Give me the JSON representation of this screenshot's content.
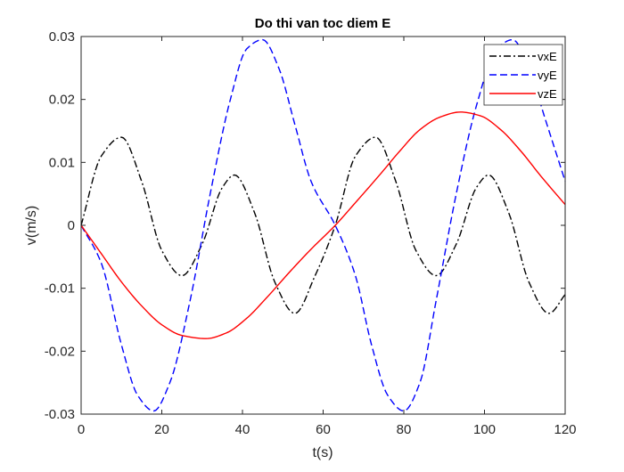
{
  "chart_data": {
    "type": "line",
    "title": "Do thi van toc diem E",
    "xlabel": "t(s)",
    "ylabel": "v(m/s)",
    "xlim": [
      0,
      120
    ],
    "ylim": [
      -0.03,
      0.03
    ],
    "xticks": [
      0,
      20,
      40,
      60,
      80,
      100,
      120
    ],
    "yticks": [
      -0.03,
      -0.02,
      -0.01,
      0,
      0.01,
      0.02,
      0.03
    ],
    "xtick_labels": [
      "0",
      "20",
      "40",
      "60",
      "80",
      "100",
      "120"
    ],
    "ytick_labels": [
      "-0.03",
      "-0.02",
      "-0.01",
      "0",
      "0.01",
      "0.02",
      "0.03"
    ],
    "grid": false,
    "legend_position": "top-right",
    "period": 63,
    "series": [
      {
        "name": "vxE",
        "color": "#000000",
        "style": "dash-dot",
        "x": [
          0,
          5,
          10,
          15,
          20,
          25,
          30,
          35,
          38,
          43,
          48,
          53,
          58,
          63,
          68,
          73,
          78,
          83,
          88,
          93,
          98,
          101,
          106,
          111,
          116,
          120
        ],
        "y": [
          0,
          0.011,
          0.014,
          0.007,
          -0.004,
          -0.008,
          -0.003,
          0.006,
          0.008,
          0.002,
          -0.009,
          -0.014,
          -0.008,
          0,
          0.011,
          0.014,
          0.007,
          -0.004,
          -0.008,
          -0.003,
          0.006,
          0.008,
          0.002,
          -0.009,
          -0.014,
          -0.011
        ]
      },
      {
        "name": "vyE",
        "color": "#0000ff",
        "style": "dashed",
        "x": [
          0,
          5,
          10,
          14,
          18,
          22,
          27,
          32,
          37,
          41,
          45,
          49,
          53,
          57,
          63,
          68,
          72,
          76,
          80,
          84,
          88,
          93,
          98,
          103,
          107,
          111,
          115,
          120
        ],
        "y": [
          0,
          -0.006,
          -0.019,
          -0.027,
          -0.0295,
          -0.025,
          -0.012,
          0.005,
          0.02,
          0.028,
          0.0295,
          0.025,
          0.016,
          0.007,
          0,
          -0.008,
          -0.019,
          -0.027,
          -0.0295,
          -0.025,
          -0.012,
          0.005,
          0.019,
          0.028,
          0.0295,
          0.025,
          0.017,
          0.007
        ]
      },
      {
        "name": "vzE",
        "color": "#ff0000",
        "style": "solid",
        "x": [
          0,
          5,
          10,
          15,
          20,
          25,
          31,
          36,
          41,
          46,
          52,
          57,
          63,
          68,
          74,
          79,
          84,
          89,
          94,
          99,
          104,
          109,
          114,
          120
        ],
        "y": [
          0,
          -0.0045,
          -0.009,
          -0.0128,
          -0.0158,
          -0.0175,
          -0.018,
          -0.0171,
          -0.0148,
          -0.0115,
          -0.0072,
          -0.0038,
          0,
          0.0036,
          0.008,
          0.0118,
          0.0152,
          0.0172,
          0.018,
          0.0174,
          0.0152,
          0.0118,
          0.0078,
          0.0033
        ]
      }
    ]
  }
}
